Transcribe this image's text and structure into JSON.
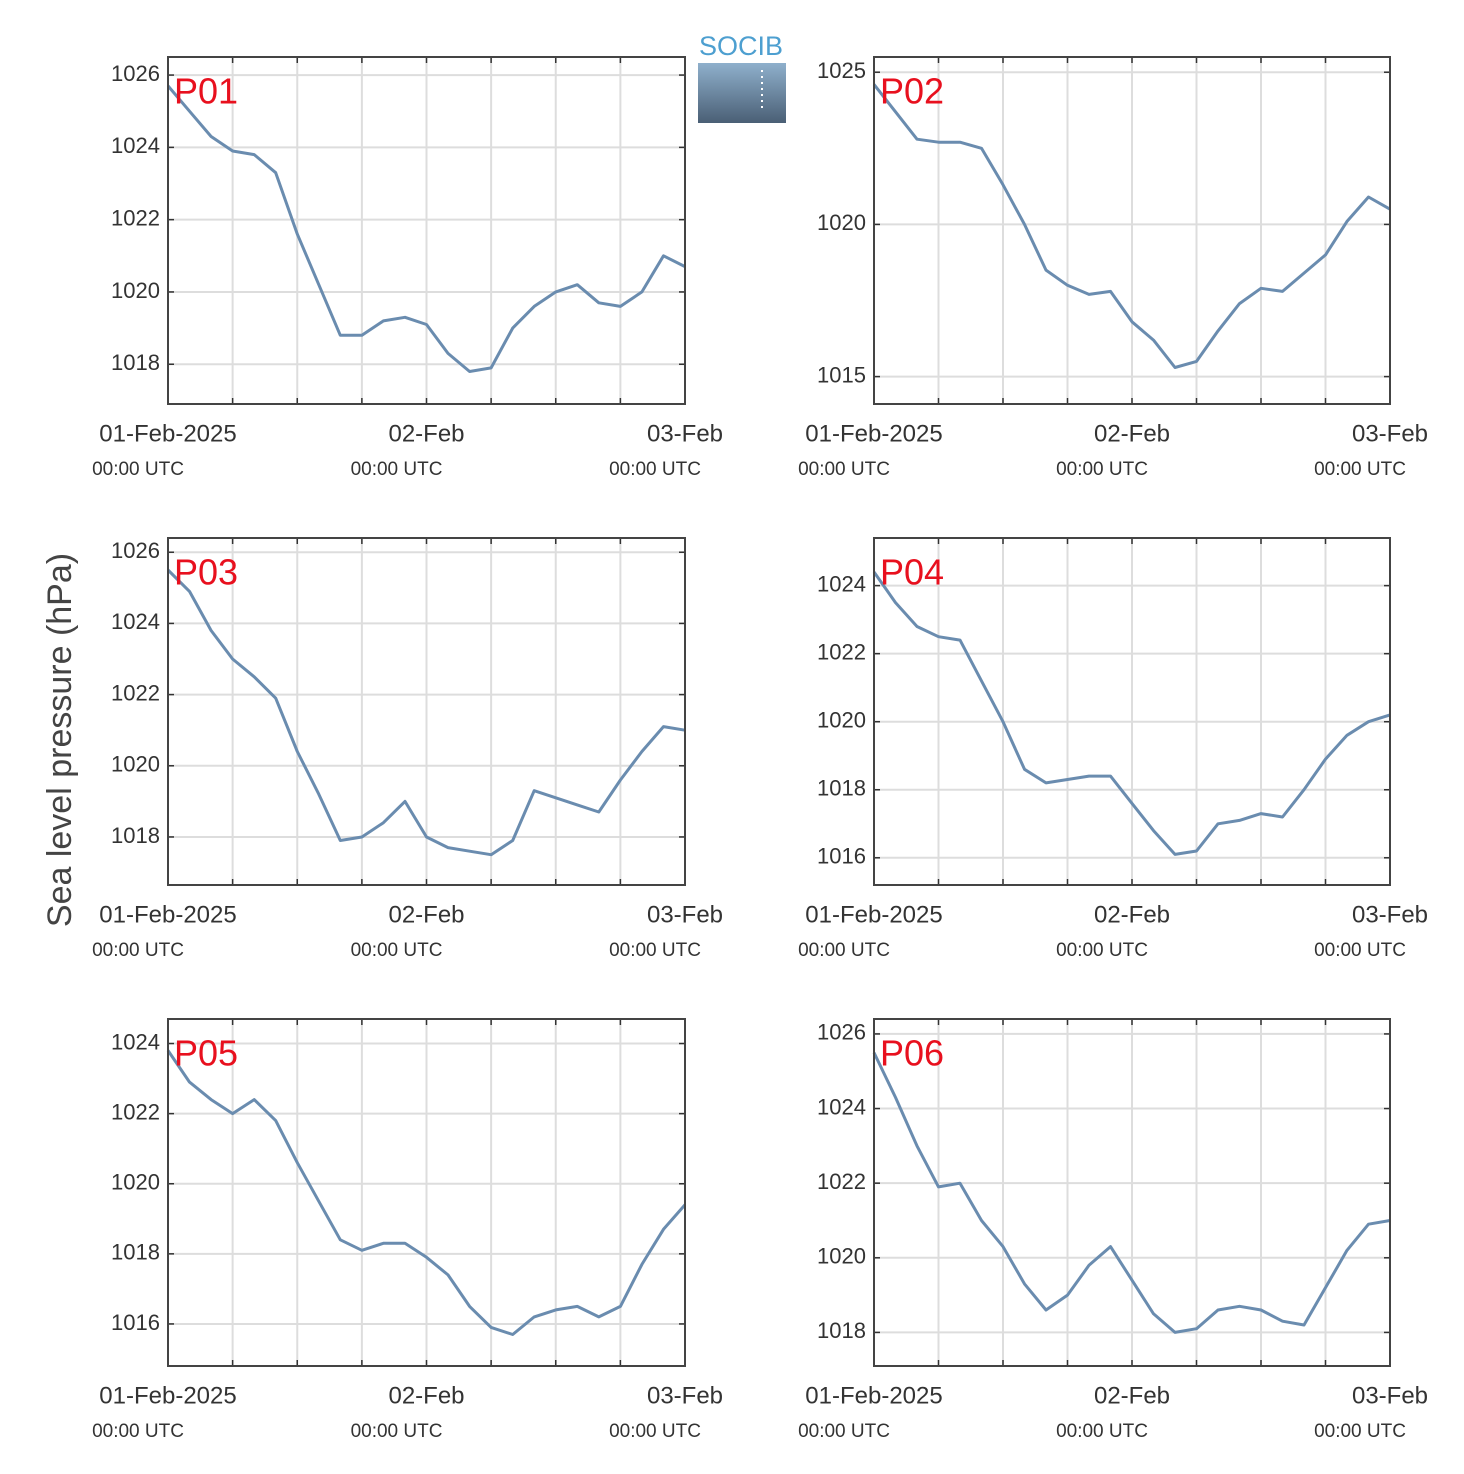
{
  "ylabel": "Sea level pressure (hPa)",
  "logo": "SOCIB",
  "chart_data": [
    {
      "type": "line",
      "title": "P01",
      "x": [
        0,
        2,
        4,
        6,
        8,
        10,
        12,
        14,
        16,
        18,
        20,
        22,
        24,
        26,
        28,
        30,
        32,
        34,
        36,
        38,
        40,
        42,
        44,
        46,
        48
      ],
      "values": [
        1025.7,
        1025.0,
        1024.3,
        1023.9,
        1023.8,
        1023.3,
        1021.6,
        1020.2,
        1018.8,
        1018.8,
        1019.2,
        1019.3,
        1019.1,
        1018.3,
        1017.8,
        1017.9,
        1019.0,
        1019.6,
        1020.0,
        1020.2,
        1019.7,
        1019.6,
        1020.0,
        1021.0,
        1020.7
      ],
      "color": "#6a8caf",
      "xlim": [
        0,
        48
      ],
      "xticks": [
        {
          "value": 0,
          "label": "01-Feb-2025",
          "sublabel": "00:00 UTC"
        },
        {
          "value": 24,
          "label": "02-Feb",
          "sublabel": "00:00 UTC"
        },
        {
          "value": 48,
          "label": "03-Feb",
          "sublabel": "00:00 UTC"
        }
      ],
      "xminor": [
        6,
        12,
        18,
        30,
        36,
        42
      ],
      "ylim": [
        1016.9,
        1026.5
      ],
      "yticks": [
        1018,
        1020,
        1022,
        1024,
        1026
      ],
      "grid": true
    },
    {
      "type": "line",
      "title": "P02",
      "x": [
        0,
        2,
        4,
        6,
        8,
        10,
        12,
        14,
        16,
        18,
        20,
        22,
        24,
        26,
        28,
        30,
        32,
        34,
        36,
        38,
        40,
        42,
        44,
        46,
        48
      ],
      "values": [
        1024.6,
        1023.7,
        1022.8,
        1022.7,
        1022.7,
        1022.5,
        1021.3,
        1020.0,
        1018.5,
        1018.0,
        1017.7,
        1017.8,
        1016.8,
        1016.2,
        1015.3,
        1015.5,
        1016.5,
        1017.4,
        1017.9,
        1017.8,
        1018.4,
        1019.0,
        1020.1,
        1020.9,
        1020.5
      ],
      "color": "#6a8caf",
      "xlim": [
        0,
        48
      ],
      "xticks": [
        {
          "value": 0,
          "label": "01-Feb-2025",
          "sublabel": "00:00 UTC"
        },
        {
          "value": 24,
          "label": "02-Feb",
          "sublabel": "00:00 UTC"
        },
        {
          "value": 48,
          "label": "03-Feb",
          "sublabel": "00:00 UTC"
        }
      ],
      "xminor": [
        6,
        12,
        18,
        30,
        36,
        42
      ],
      "ylim": [
        1014.1,
        1025.5
      ],
      "yticks": [
        1015,
        1020,
        1025
      ],
      "grid": true
    },
    {
      "type": "line",
      "title": "P03",
      "x": [
        0,
        2,
        4,
        6,
        8,
        10,
        12,
        14,
        16,
        18,
        20,
        22,
        24,
        26,
        28,
        30,
        32,
        34,
        36,
        38,
        40,
        42,
        44,
        46,
        48
      ],
      "values": [
        1025.5,
        1024.9,
        1023.8,
        1023.0,
        1022.5,
        1021.9,
        1020.4,
        1019.2,
        1017.9,
        1018.0,
        1018.4,
        1019.0,
        1018.0,
        1017.7,
        1017.6,
        1017.5,
        1017.9,
        1019.3,
        1019.1,
        1018.9,
        1018.7,
        1019.6,
        1020.4,
        1021.1,
        1021.0
      ],
      "color": "#6a8caf",
      "xlim": [
        0,
        48
      ],
      "xticks": [
        {
          "value": 0,
          "label": "01-Feb-2025",
          "sublabel": "00:00 UTC"
        },
        {
          "value": 24,
          "label": "02-Feb",
          "sublabel": "00:00 UTC"
        },
        {
          "value": 48,
          "label": "03-Feb",
          "sublabel": "00:00 UTC"
        }
      ],
      "xminor": [
        6,
        12,
        18,
        30,
        36,
        42
      ],
      "ylim": [
        1016.65,
        1026.4
      ],
      "yticks": [
        1018,
        1020,
        1022,
        1024,
        1026
      ],
      "grid": true
    },
    {
      "type": "line",
      "title": "P04",
      "x": [
        0,
        2,
        4,
        6,
        8,
        10,
        12,
        14,
        16,
        18,
        20,
        22,
        24,
        26,
        28,
        30,
        32,
        34,
        36,
        38,
        40,
        42,
        44,
        46,
        48
      ],
      "values": [
        1024.4,
        1023.5,
        1022.8,
        1022.5,
        1022.4,
        1021.2,
        1020.0,
        1018.6,
        1018.2,
        1018.3,
        1018.4,
        1018.4,
        1017.6,
        1016.8,
        1016.1,
        1016.2,
        1017.0,
        1017.1,
        1017.3,
        1017.2,
        1018.0,
        1018.9,
        1019.6,
        1020.0,
        1020.2
      ],
      "color": "#6a8caf",
      "xlim": [
        0,
        48
      ],
      "xticks": [
        {
          "value": 0,
          "label": "01-Feb-2025",
          "sublabel": "00:00 UTC"
        },
        {
          "value": 24,
          "label": "02-Feb",
          "sublabel": "00:00 UTC"
        },
        {
          "value": 48,
          "label": "03-Feb",
          "sublabel": "00:00 UTC"
        }
      ],
      "xminor": [
        6,
        12,
        18,
        30,
        36,
        42
      ],
      "ylim": [
        1015.2,
        1025.4
      ],
      "yticks": [
        1016,
        1018,
        1020,
        1022,
        1024
      ],
      "grid": true
    },
    {
      "type": "line",
      "title": "P05",
      "x": [
        0,
        2,
        4,
        6,
        8,
        10,
        12,
        14,
        16,
        18,
        20,
        22,
        24,
        26,
        28,
        30,
        32,
        34,
        36,
        38,
        40,
        42,
        44,
        46,
        48
      ],
      "values": [
        1023.8,
        1022.9,
        1022.4,
        1022.0,
        1022.4,
        1021.8,
        1020.6,
        1019.5,
        1018.4,
        1018.1,
        1018.3,
        1018.3,
        1017.9,
        1017.4,
        1016.5,
        1015.9,
        1015.7,
        1016.2,
        1016.4,
        1016.5,
        1016.2,
        1016.5,
        1017.7,
        1018.7,
        1019.4
      ],
      "color": "#6a8caf",
      "xlim": [
        0,
        48
      ],
      "xticks": [
        {
          "value": 0,
          "label": "01-Feb-2025",
          "sublabel": "00:00 UTC"
        },
        {
          "value": 24,
          "label": "02-Feb",
          "sublabel": "00:00 UTC"
        },
        {
          "value": 48,
          "label": "03-Feb",
          "sublabel": "00:00 UTC"
        }
      ],
      "xminor": [
        6,
        12,
        18,
        30,
        36,
        42
      ],
      "ylim": [
        1014.8,
        1024.7
      ],
      "yticks": [
        1016,
        1018,
        1020,
        1022,
        1024
      ],
      "grid": true
    },
    {
      "type": "line",
      "title": "P06",
      "x": [
        0,
        2,
        4,
        6,
        8,
        10,
        12,
        14,
        16,
        18,
        20,
        22,
        24,
        26,
        28,
        30,
        32,
        34,
        36,
        38,
        40,
        42,
        44,
        46,
        48
      ],
      "values": [
        1025.5,
        1024.3,
        1023.0,
        1021.9,
        1022.0,
        1021.0,
        1020.3,
        1019.3,
        1018.6,
        1019.0,
        1019.8,
        1020.3,
        1019.4,
        1018.5,
        1018.0,
        1018.1,
        1018.6,
        1018.7,
        1018.6,
        1018.3,
        1018.2,
        1019.2,
        1020.2,
        1020.9,
        1021.0
      ],
      "color": "#6a8caf",
      "xlim": [
        0,
        48
      ],
      "xticks": [
        {
          "value": 0,
          "label": "01-Feb-2025",
          "sublabel": "00:00 UTC"
        },
        {
          "value": 24,
          "label": "02-Feb",
          "sublabel": "00:00 UTC"
        },
        {
          "value": 48,
          "label": "03-Feb",
          "sublabel": "00:00 UTC"
        }
      ],
      "xminor": [
        6,
        12,
        18,
        30,
        36,
        42
      ],
      "ylim": [
        1017.1,
        1026.4
      ],
      "yticks": [
        1018,
        1020,
        1022,
        1024,
        1026
      ],
      "grid": true
    }
  ]
}
